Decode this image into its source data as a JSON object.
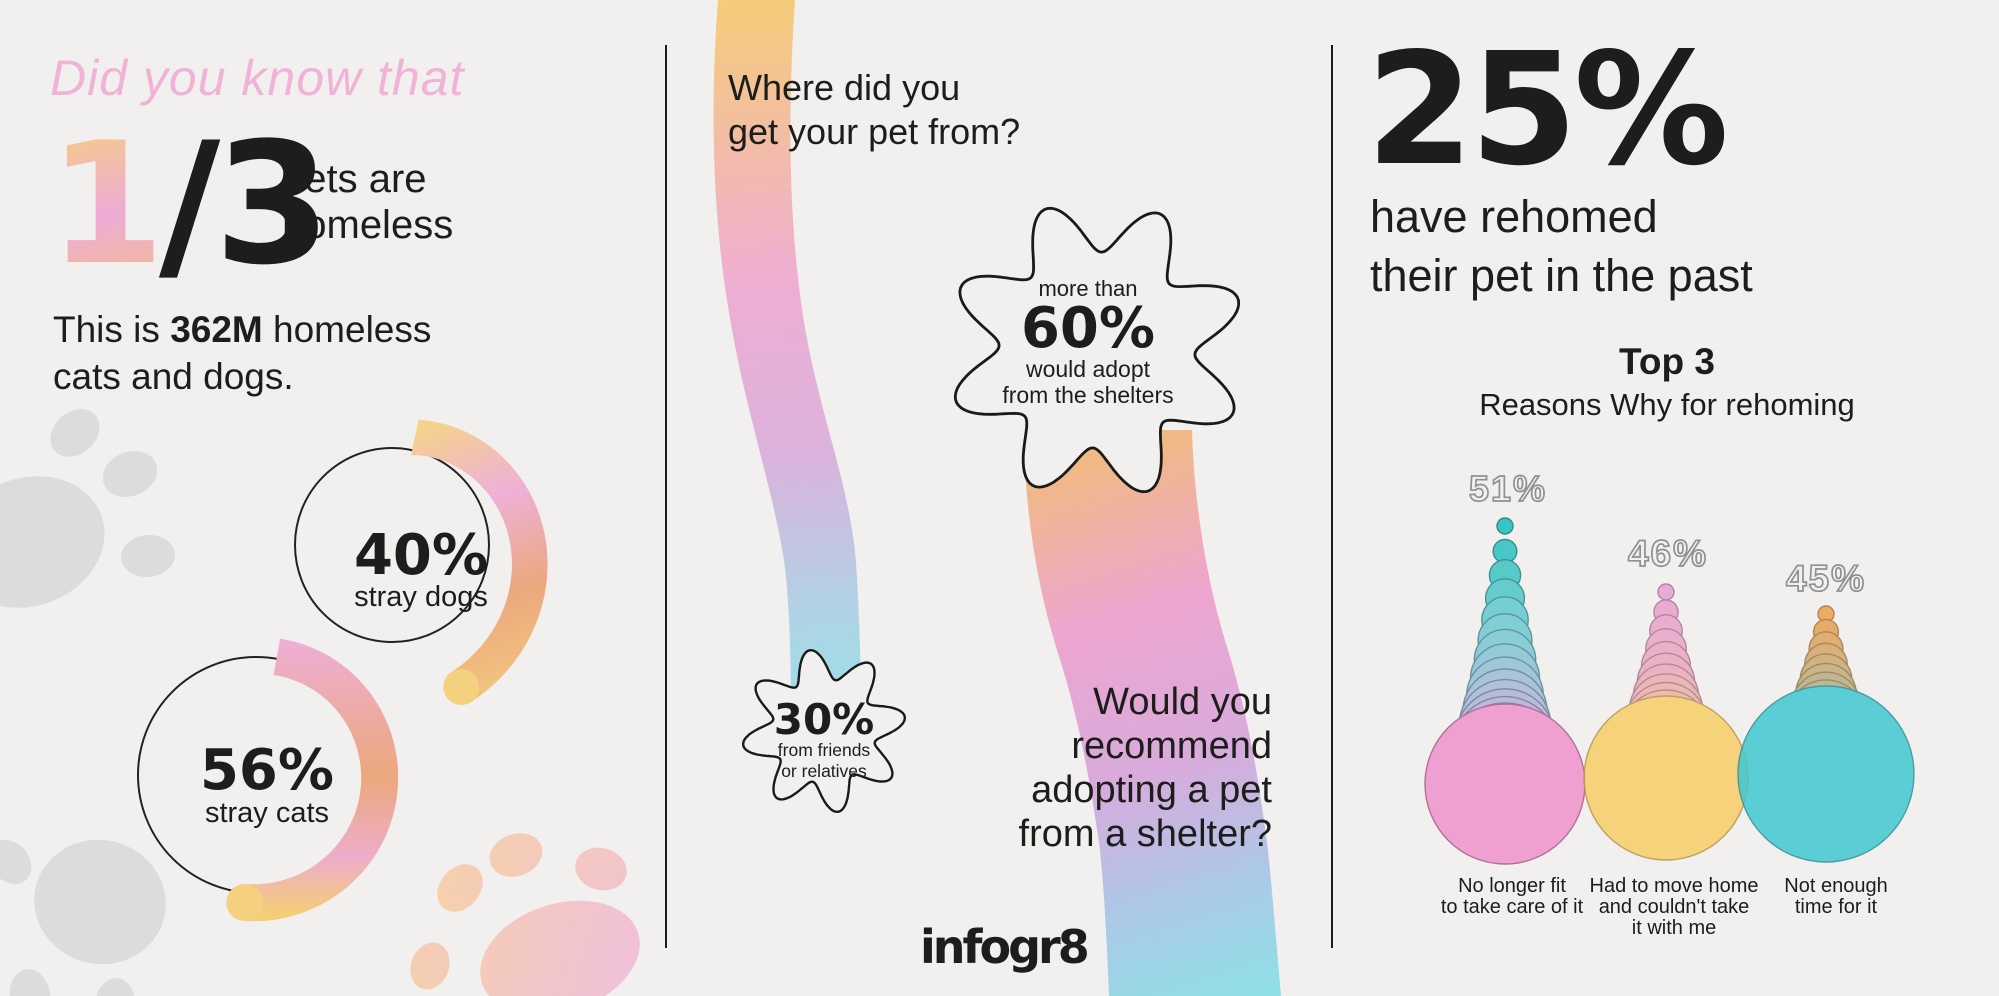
{
  "canvas": {
    "bg": "#f1f0ee"
  },
  "left_panel": {
    "kicker": "Did you know that",
    "stat_fraction_highlight": "1",
    "stat_fraction_rest": "/3",
    "stat_label_line1": "pets are",
    "stat_label_line2": "homeless",
    "subtext_prefix": "This is ",
    "subtext_bold": "362M",
    "subtext_suffix": " homeless",
    "subtext_line2": "cats and dogs.",
    "donuts": [
      {
        "value_text": "40%",
        "label": "stray dogs",
        "percent": 40
      },
      {
        "value_text": "56%",
        "label": "stray cats",
        "percent": 56
      }
    ]
  },
  "middle_panel": {
    "question1_line1": "Where did you",
    "question1_line2": "get your pet from?",
    "badge_large": {
      "prefix": "more than",
      "value": "60%",
      "suffix_line1": "would adopt",
      "suffix_line2": "from the shelters"
    },
    "badge_small": {
      "value": "30%",
      "line1": "from friends",
      "line2": "or relatives"
    },
    "question2_line1": "Would you",
    "question2_line2": "recommend",
    "question2_line3": "adopting a pet",
    "question2_line4": "from a shelter?",
    "logo": "infogr8"
  },
  "right_panel": {
    "headline_value": "25%",
    "headline_line1": "have rehomed",
    "headline_line2": "their pet in the past",
    "chart_title_bold": "Top 3",
    "chart_title": "Reasons Why for rehoming",
    "cones": [
      {
        "value_text": "51%",
        "percent": 51,
        "label_lines": [
          "No longer fit",
          "to take care of it"
        ]
      },
      {
        "value_text": "46%",
        "percent": 46,
        "label_lines": [
          "Had to move home",
          "and couldn't take",
          "it with me"
        ]
      },
      {
        "value_text": "45%",
        "percent": 45,
        "label_lines": [
          "Not enough",
          "time for it"
        ]
      }
    ]
  },
  "colors": {
    "background": "#f1f0ee",
    "ink": "#1d1d1b",
    "kicker_pink": "#f0b3d7",
    "outline_gray": "#909090",
    "paw_gray": "#dcdcda",
    "gradient_yellow": "#f5cc78",
    "gradient_pink": "#efaed2",
    "gradient_orange": "#eca87e",
    "gradient_lavender": "#d9b4de",
    "gradient_cyan": "#96e1e4",
    "donut_cap_yellow": "#f5d07e",
    "cone_ramps": [
      [
        "#38c4c0",
        "#7fd0d6",
        "#acc3db",
        "#c9b0dc",
        "#f09fd1"
      ],
      [
        "#e79ed2",
        "#eaa9bb",
        "#efbb90",
        "#f8ce68"
      ],
      [
        "#ec9f48",
        "#c9a973",
        "#a3b290",
        "#63c3bc",
        "#41c7d1"
      ]
    ]
  },
  "chart_data": [
    {
      "type": "pie",
      "style": "donut-ring",
      "title": "stray dogs",
      "slices": [
        {
          "label": "stray dogs",
          "value": 40
        }
      ],
      "unit": "%"
    },
    {
      "type": "pie",
      "style": "donut-ring",
      "title": "stray cats",
      "slices": [
        {
          "label": "stray cats",
          "value": 56
        }
      ],
      "unit": "%"
    },
    {
      "type": "bar",
      "style": "stacked-circle-cones",
      "title": "Top 3 Reasons Why for rehoming",
      "categories": [
        "No longer fit to take care of it",
        "Had to move home and couldn't take it with me",
        "Not enough time for it"
      ],
      "values": [
        51,
        46,
        45
      ],
      "unit": "%",
      "ylim": [
        0,
        60
      ],
      "legend": false,
      "grid": false
    }
  ]
}
